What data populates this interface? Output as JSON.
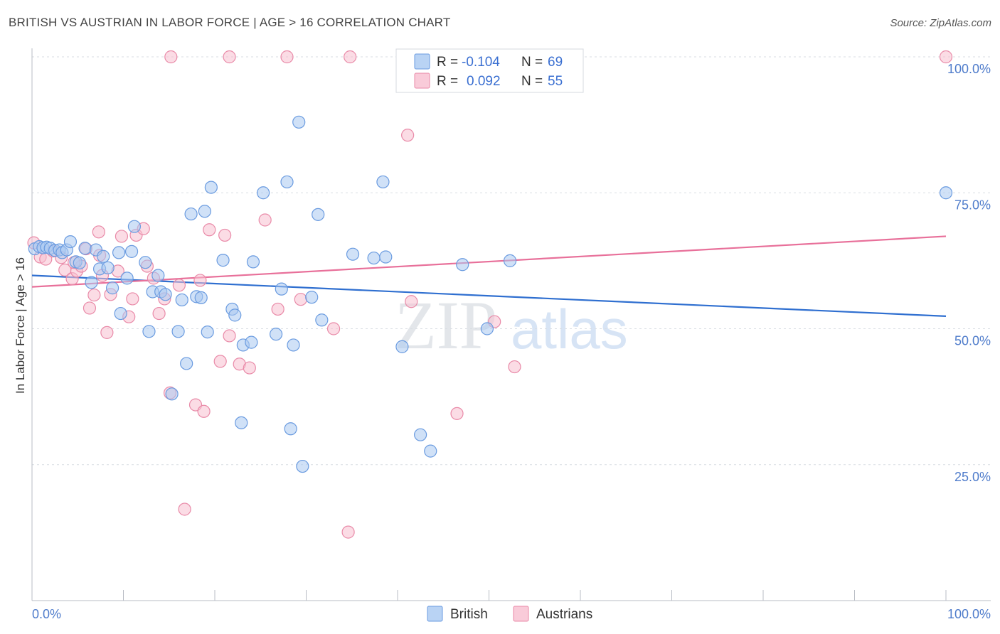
{
  "title": "BRITISH VS AUSTRIAN IN LABOR FORCE | AGE > 16 CORRELATION CHART",
  "source": "Source: ZipAtlas.com",
  "watermark": {
    "zip": "ZIP",
    "atlas": "atlas"
  },
  "legend": {
    "british": {
      "r_label": "R =",
      "r_value": "-0.104",
      "n_label": "N =",
      "n_value": "69"
    },
    "austrians": {
      "r_label": "R =",
      "r_value": "0.092",
      "n_label": "N =",
      "n_value": "55"
    }
  },
  "colors": {
    "british_fill": "#a9c8f0",
    "british_stroke": "#6a9be0",
    "british_line": "#2f6fd0",
    "austrian_fill": "#f7bfd0",
    "austrian_stroke": "#e98aa8",
    "austrian_line": "#e8709a",
    "grid": "#d9dde3",
    "axis_text": "#4f7ccb"
  },
  "chart_data": {
    "type": "scatter",
    "title": "BRITISH VS AUSTRIAN IN LABOR FORCE | AGE > 16 CORRELATION CHART",
    "xlabel": "",
    "ylabel": "In Labor Force | Age > 16",
    "xlim": [
      0,
      100
    ],
    "ylim": [
      0,
      100
    ],
    "x_tick_labels": [
      "0.0%",
      "100.0%"
    ],
    "y_ticks": [
      25,
      50,
      75,
      100
    ],
    "y_tick_labels": [
      "25.0%",
      "50.0%",
      "75.0%",
      "100.0%"
    ],
    "grid": true,
    "legend_position": "top-center",
    "series": [
      {
        "name": "British",
        "trend": {
          "x": [
            0,
            100
          ],
          "y": [
            59.8,
            52.3
          ]
        },
        "points": [
          [
            0.3,
            64.7
          ],
          [
            0.8,
            65.1
          ],
          [
            1.2,
            64.9
          ],
          [
            1.6,
            65.0
          ],
          [
            2.0,
            64.8
          ],
          [
            2.5,
            64.4
          ],
          [
            3.0,
            64.5
          ],
          [
            3.3,
            64.0
          ],
          [
            3.8,
            64.5
          ],
          [
            4.2,
            66.0
          ],
          [
            4.8,
            62.3
          ],
          [
            5.2,
            62.1
          ],
          [
            5.8,
            64.8
          ],
          [
            6.5,
            58.5
          ],
          [
            7.0,
            64.5
          ],
          [
            7.4,
            61.0
          ],
          [
            7.8,
            63.3
          ],
          [
            8.3,
            61.2
          ],
          [
            8.8,
            57.5
          ],
          [
            9.5,
            64.0
          ],
          [
            9.7,
            52.8
          ],
          [
            10.4,
            59.3
          ],
          [
            10.9,
            64.2
          ],
          [
            11.2,
            68.8
          ],
          [
            12.4,
            62.2
          ],
          [
            12.8,
            49.5
          ],
          [
            13.2,
            56.8
          ],
          [
            13.8,
            59.8
          ],
          [
            14.1,
            56.8
          ],
          [
            14.6,
            56.3
          ],
          [
            15.3,
            38.0
          ],
          [
            16.0,
            49.5
          ],
          [
            16.4,
            55.3
          ],
          [
            16.9,
            43.6
          ],
          [
            17.4,
            71.1
          ],
          [
            18.0,
            55.9
          ],
          [
            18.5,
            55.7
          ],
          [
            18.9,
            71.6
          ],
          [
            19.2,
            49.4
          ],
          [
            19.6,
            76.0
          ],
          [
            20.9,
            62.6
          ],
          [
            21.9,
            53.6
          ],
          [
            22.2,
            52.5
          ],
          [
            22.9,
            32.7
          ],
          [
            23.1,
            47.0
          ],
          [
            24.0,
            47.5
          ],
          [
            24.2,
            62.3
          ],
          [
            25.3,
            75.0
          ],
          [
            26.7,
            49.0
          ],
          [
            27.3,
            57.3
          ],
          [
            27.9,
            77.0
          ],
          [
            28.3,
            31.6
          ],
          [
            28.6,
            47.0
          ],
          [
            29.2,
            88.0
          ],
          [
            29.6,
            24.7
          ],
          [
            30.6,
            55.8
          ],
          [
            31.7,
            51.6
          ],
          [
            35.1,
            63.7
          ],
          [
            37.4,
            63.0
          ],
          [
            38.4,
            77.0
          ],
          [
            38.7,
            63.2
          ],
          [
            40.5,
            46.7
          ],
          [
            42.5,
            30.5
          ],
          [
            43.6,
            27.5
          ],
          [
            47.1,
            61.8
          ],
          [
            49.8,
            50.0
          ],
          [
            52.3,
            62.5
          ],
          [
            31.3,
            71.0
          ],
          [
            100.0,
            75.0
          ]
        ]
      },
      {
        "name": "Austrians",
        "trend": {
          "x": [
            0,
            100
          ],
          "y": [
            57.7,
            67.0
          ]
        },
        "points": [
          [
            0.2,
            65.8
          ],
          [
            0.9,
            63.2
          ],
          [
            1.5,
            62.8
          ],
          [
            2.3,
            64.3
          ],
          [
            3.2,
            63.1
          ],
          [
            3.6,
            60.8
          ],
          [
            4.4,
            59.2
          ],
          [
            4.9,
            60.6
          ],
          [
            5.4,
            61.5
          ],
          [
            5.9,
            64.7
          ],
          [
            6.3,
            53.8
          ],
          [
            6.8,
            56.2
          ],
          [
            7.3,
            67.8
          ],
          [
            7.7,
            59.8
          ],
          [
            8.2,
            49.3
          ],
          [
            8.6,
            56.3
          ],
          [
            9.4,
            60.6
          ],
          [
            9.8,
            67.0
          ],
          [
            10.6,
            52.2
          ],
          [
            11.0,
            55.5
          ],
          [
            11.4,
            67.2
          ],
          [
            12.2,
            68.4
          ],
          [
            12.6,
            61.5
          ],
          [
            13.3,
            59.3
          ],
          [
            13.9,
            52.8
          ],
          [
            14.5,
            55.5
          ],
          [
            15.1,
            38.2
          ],
          [
            16.1,
            58.0
          ],
          [
            16.7,
            16.8
          ],
          [
            17.9,
            36.0
          ],
          [
            18.4,
            58.9
          ],
          [
            18.8,
            34.8
          ],
          [
            19.4,
            68.2
          ],
          [
            20.6,
            44.0
          ],
          [
            21.1,
            67.2
          ],
          [
            21.6,
            48.7
          ],
          [
            22.7,
            43.5
          ],
          [
            23.8,
            42.8
          ],
          [
            25.5,
            70.0
          ],
          [
            26.9,
            53.6
          ],
          [
            29.4,
            55.4
          ],
          [
            33.0,
            50.0
          ],
          [
            34.6,
            12.6
          ],
          [
            41.1,
            85.6
          ],
          [
            41.5,
            55.0
          ],
          [
            46.5,
            34.4
          ],
          [
            50.6,
            51.3
          ],
          [
            52.8,
            43.0
          ],
          [
            15.2,
            100.0
          ],
          [
            21.6,
            100.0
          ],
          [
            27.9,
            100.0
          ],
          [
            34.8,
            100.0
          ],
          [
            100.0,
            100.0
          ],
          [
            7.4,
            63.5
          ],
          [
            4.6,
            62.2
          ]
        ]
      }
    ]
  },
  "bottom_legend": {
    "british": "British",
    "austrians": "Austrians"
  }
}
